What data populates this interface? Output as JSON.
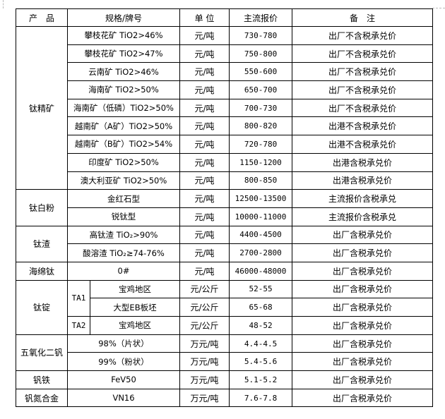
{
  "header": {
    "product": "产　品",
    "spec": "规格/牌号",
    "unit": "单 位",
    "price": "主流报价",
    "note": "备　注"
  },
  "groups": [
    {
      "name": "钛精矿",
      "rows": [
        {
          "spec": "攀枝花矿 TiO2>46%",
          "unit": "元/吨",
          "price": "730-780",
          "note": "出厂不含税承兑价"
        },
        {
          "spec": "攀枝花矿 TiO2>47%",
          "unit": "元/吨",
          "price": "750-800",
          "note": "出厂不含税承兑价"
        },
        {
          "spec": "云南矿 TiO2>46%",
          "unit": "元/吨",
          "price": "550-600",
          "note": "出厂不含税承兑价"
        },
        {
          "spec": "海南矿 TiO2>50%",
          "unit": "元/吨",
          "price": "650-700",
          "note": "出厂不含税承兑价"
        },
        {
          "spec": "海南矿（低磷）TiO2>50%",
          "unit": "元/吨",
          "price": "700-730",
          "note": "出厂不含税承兑价"
        },
        {
          "spec": "越南矿（A矿）TiO2>50%",
          "unit": "元/吨",
          "price": "800-820",
          "note": "出港不含税承兑价"
        },
        {
          "spec": "越南矿（B矿）TiO2>54%",
          "unit": "元/吨",
          "price": "720-780",
          "note": "出港不含税承兑价"
        },
        {
          "spec": "印度矿 TiO2>50%",
          "unit": "元/吨",
          "price": "1150-1200",
          "note": "出港含税承兑价"
        },
        {
          "spec": "澳大利亚矿 TiO2>50%",
          "unit": "元/吨",
          "price": "800-850",
          "note": "出港含税承兑价"
        }
      ]
    },
    {
      "name": "钛白粉",
      "rows": [
        {
          "spec": "金红石型",
          "unit": "元/吨",
          "price": "12500-13500",
          "note": "主流报价含税承兑"
        },
        {
          "spec": "锐钛型",
          "unit": "元/吨",
          "price": "10000-11000",
          "note": "主流报价含税承兑"
        }
      ]
    },
    {
      "name": "钛渣",
      "rows": [
        {
          "spec": "高钛渣 TiO₂>90%",
          "unit": "元/吨",
          "price": "4400-4500",
          "note": "出厂含税承兑价"
        },
        {
          "spec": "酸溶渣 TiO₂≥74-76%",
          "unit": "元/吨",
          "price": "2700-2800",
          "note": "出厂含税承兑价"
        }
      ]
    },
    {
      "name": "海绵钛",
      "rows": [
        {
          "spec": "0#",
          "unit": "元/吨",
          "price": "46000-48000",
          "note": "出厂含税承兑价"
        }
      ]
    },
    {
      "name": "钛锭",
      "subgroups": [
        {
          "grade": "TA1",
          "rows": [
            {
              "spec": "宝鸡地区",
              "unit": "元/公斤",
              "price": "52-55",
              "note": "出厂含税承兑价"
            },
            {
              "spec": "大型EB板坯",
              "unit": "元/公斤",
              "price": "65-68",
              "note": "出厂含税承兑价"
            }
          ]
        },
        {
          "grade": "TA2",
          "rows": [
            {
              "spec": "宝鸡地区",
              "unit": "元/公斤",
              "price": "48-52",
              "note": "出厂含税承兑价"
            }
          ]
        }
      ]
    },
    {
      "name": "五氧化二钒",
      "rows": [
        {
          "spec": "98%（片状）",
          "unit": "万元/吨",
          "price": "4.4-4.5",
          "note": "出厂含税承兑价"
        },
        {
          "spec": "99%（粉状）",
          "unit": "万元/吨",
          "price": "5.4-5.6",
          "note": "出厂含税承兑价"
        }
      ]
    },
    {
      "name": "钒铁",
      "rows": [
        {
          "spec": "FeV50",
          "unit": "万元/吨",
          "price": "5.1-5.2",
          "note": "出厂含税承兑价"
        }
      ]
    },
    {
      "name": "钒氮合金",
      "rows": [
        {
          "spec": "VN16",
          "unit": "万元/吨",
          "price": "7.6-7.8",
          "note": "出厂含税承兑价"
        }
      ]
    }
  ]
}
